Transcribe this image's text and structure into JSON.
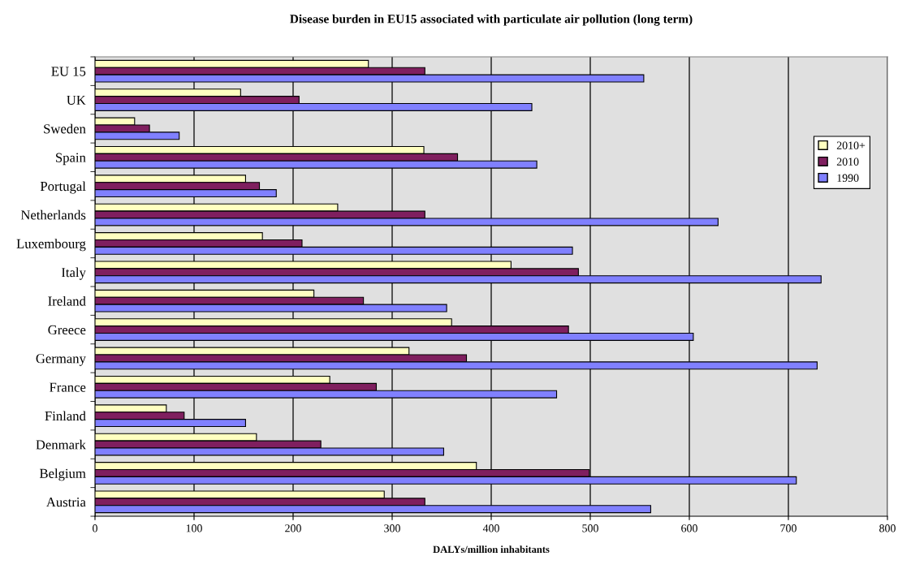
{
  "chart_data": {
    "type": "bar",
    "orientation": "horizontal",
    "title": "Disease burden in EU15 associated with particulate air pollution (long term)",
    "xlabel": "DALYs/million inhabitants",
    "categories": [
      "EU 15",
      "UK",
      "Sweden",
      "Spain",
      "Portugal",
      "Netherlands",
      "Luxembourg",
      "Italy",
      "Ireland",
      "Greece",
      "Germany",
      "France",
      "Finland",
      "Denmark",
      "Belgium",
      "Austria"
    ],
    "series": [
      {
        "name": "2010+",
        "color": "#ffffc0",
        "values": [
          276,
          147,
          40,
          332,
          152,
          245,
          169,
          420,
          221,
          360,
          317,
          237,
          72,
          163,
          385,
          292
        ]
      },
      {
        "name": "2010",
        "color": "#7f1f5f",
        "values": [
          333,
          206,
          55,
          366,
          166,
          333,
          209,
          488,
          271,
          478,
          375,
          284,
          90,
          228,
          499,
          333
        ]
      },
      {
        "name": "1990",
        "color": "#8080ff",
        "values": [
          554,
          441,
          85,
          446,
          183,
          629,
          482,
          733,
          355,
          604,
          729,
          466,
          152,
          352,
          708,
          561
        ]
      }
    ],
    "xlim": [
      0,
      800
    ],
    "xticks": [
      0,
      100,
      200,
      300,
      400,
      500,
      600,
      700,
      800
    ],
    "grid": "x",
    "legend": "right"
  }
}
